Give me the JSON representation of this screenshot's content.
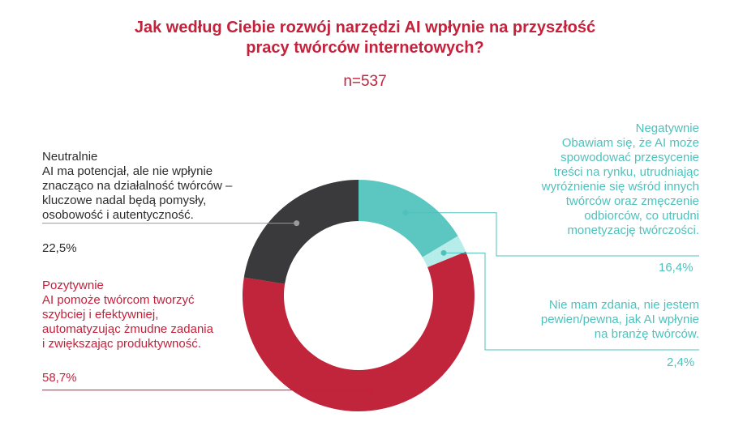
{
  "title_lines": [
    "Jak według Ciebie rozwój narzędzi AI wpłynie na przyszłość",
    "pracy twórców internetowych?"
  ],
  "n_label": "n=537",
  "colors": {
    "title": "#c4213b",
    "negative": "#5cc6c0",
    "no_opinion": "#b6ece9",
    "positive": "#c0253b",
    "neutral": "#3a3a3c"
  },
  "chart_data": {
    "type": "pie",
    "donut": true,
    "start_angle_deg": 0,
    "direction": "clockwise",
    "slices": [
      {
        "key": "negative",
        "name": "Negatywnie",
        "description_lines": [
          "Obawiam się, że AI może",
          "spowodować przesycenie",
          "treści na rynku, utrudniając",
          "wyróżnienie się wśród innych",
          "twórców oraz zmęczenie",
          "odbiorców, co utrudni",
          "monetyzację twórczości."
        ],
        "value": 16.4,
        "value_label": "16,4%"
      },
      {
        "key": "no_opinion",
        "name": "",
        "description_lines": [
          "Nie mam zdania, nie jestem",
          "pewien/pewna, jak AI wpłynie",
          "na branżę twórców."
        ],
        "value": 2.4,
        "value_label": "2,4%"
      },
      {
        "key": "positive",
        "name": "Pozytywnie",
        "description_lines": [
          "AI pomoże twórcom tworzyć",
          "szybciej i efektywniej,",
          "automatyzując żmudne zadania",
          "i zwiększając produktywność."
        ],
        "value": 58.7,
        "value_label": "58,7%"
      },
      {
        "key": "neutral",
        "name": "Neutralnie",
        "description_lines": [
          "AI ma potencjał, ale nie wpłynie",
          "znacząco na działalność twórców –",
          "kluczowe nadal będą pomysły,",
          "osobowość i autentyczność."
        ],
        "value": 22.5,
        "value_label": "22,5%"
      }
    ]
  }
}
